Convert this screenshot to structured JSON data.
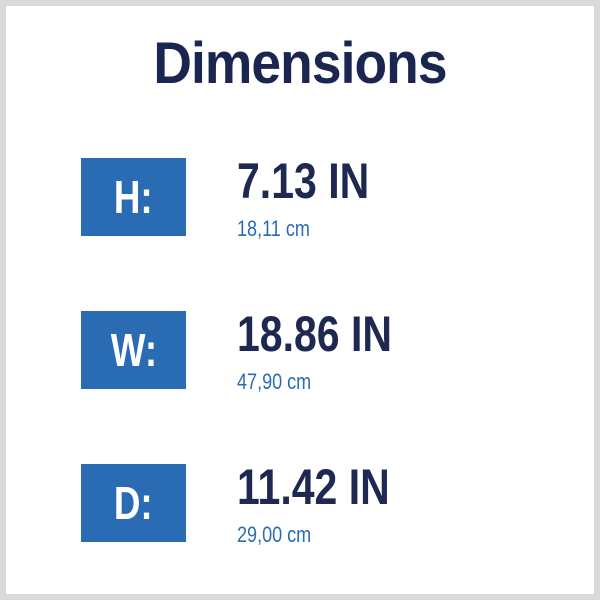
{
  "title": "Dimensions",
  "colors": {
    "box": "#2a6cb4",
    "text": "#1e2850",
    "sub": "#2a6cb4"
  },
  "rows": [
    {
      "label": "H:",
      "value": "7.13 IN",
      "metric": "18,11 cm"
    },
    {
      "label": "W:",
      "value": "18.86 IN",
      "metric": "47,90 cm"
    },
    {
      "label": "D:",
      "value": "11.42 IN",
      "metric": "29,00 cm"
    }
  ]
}
